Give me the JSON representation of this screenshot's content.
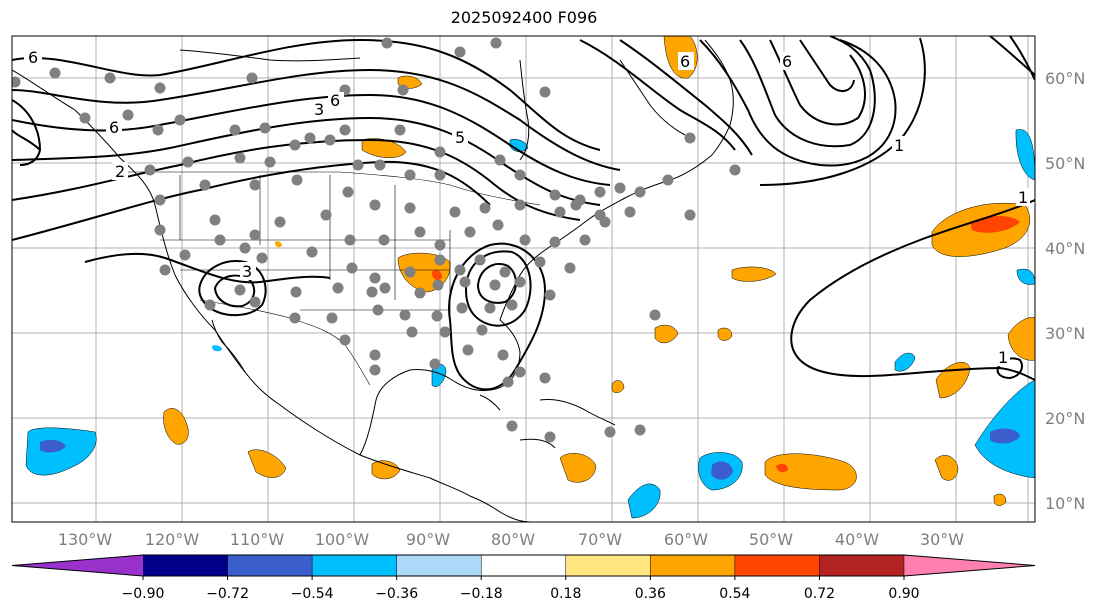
{
  "title": "2025092400 F096",
  "longitude_labels": [
    "130°W",
    "120°W",
    "110°W",
    "100°W",
    "90°W",
    "80°W",
    "70°W",
    "60°W",
    "50°W",
    "40°W",
    "30°W"
  ],
  "latitude_labels": [
    "60°N",
    "50°N",
    "40°N",
    "30°N",
    "20°N",
    "10°N"
  ],
  "colorbar": {
    "tick_labels": [
      "−0.90",
      "−0.72",
      "−0.54",
      "−0.36",
      "−0.18",
      "0.18",
      "0.36",
      "0.54",
      "0.72",
      "0.90"
    ],
    "colors": [
      "#9932cc",
      "#00008b",
      "#3a5fcd",
      "#00bfff",
      "#add8f7",
      "#ffffff",
      "#ffe680",
      "#ffa500",
      "#ff4500",
      "#b22222",
      "#ff80b0"
    ],
    "extend": "both"
  },
  "contour_labels": [
    "6",
    "6",
    "2",
    "3",
    "3",
    "5",
    "6",
    "1",
    "1",
    "1",
    "6",
    "6"
  ],
  "colors": {
    "contour": "#000000",
    "station": "#808080",
    "coast": "#000000",
    "grid": "#b0b0b0"
  }
}
